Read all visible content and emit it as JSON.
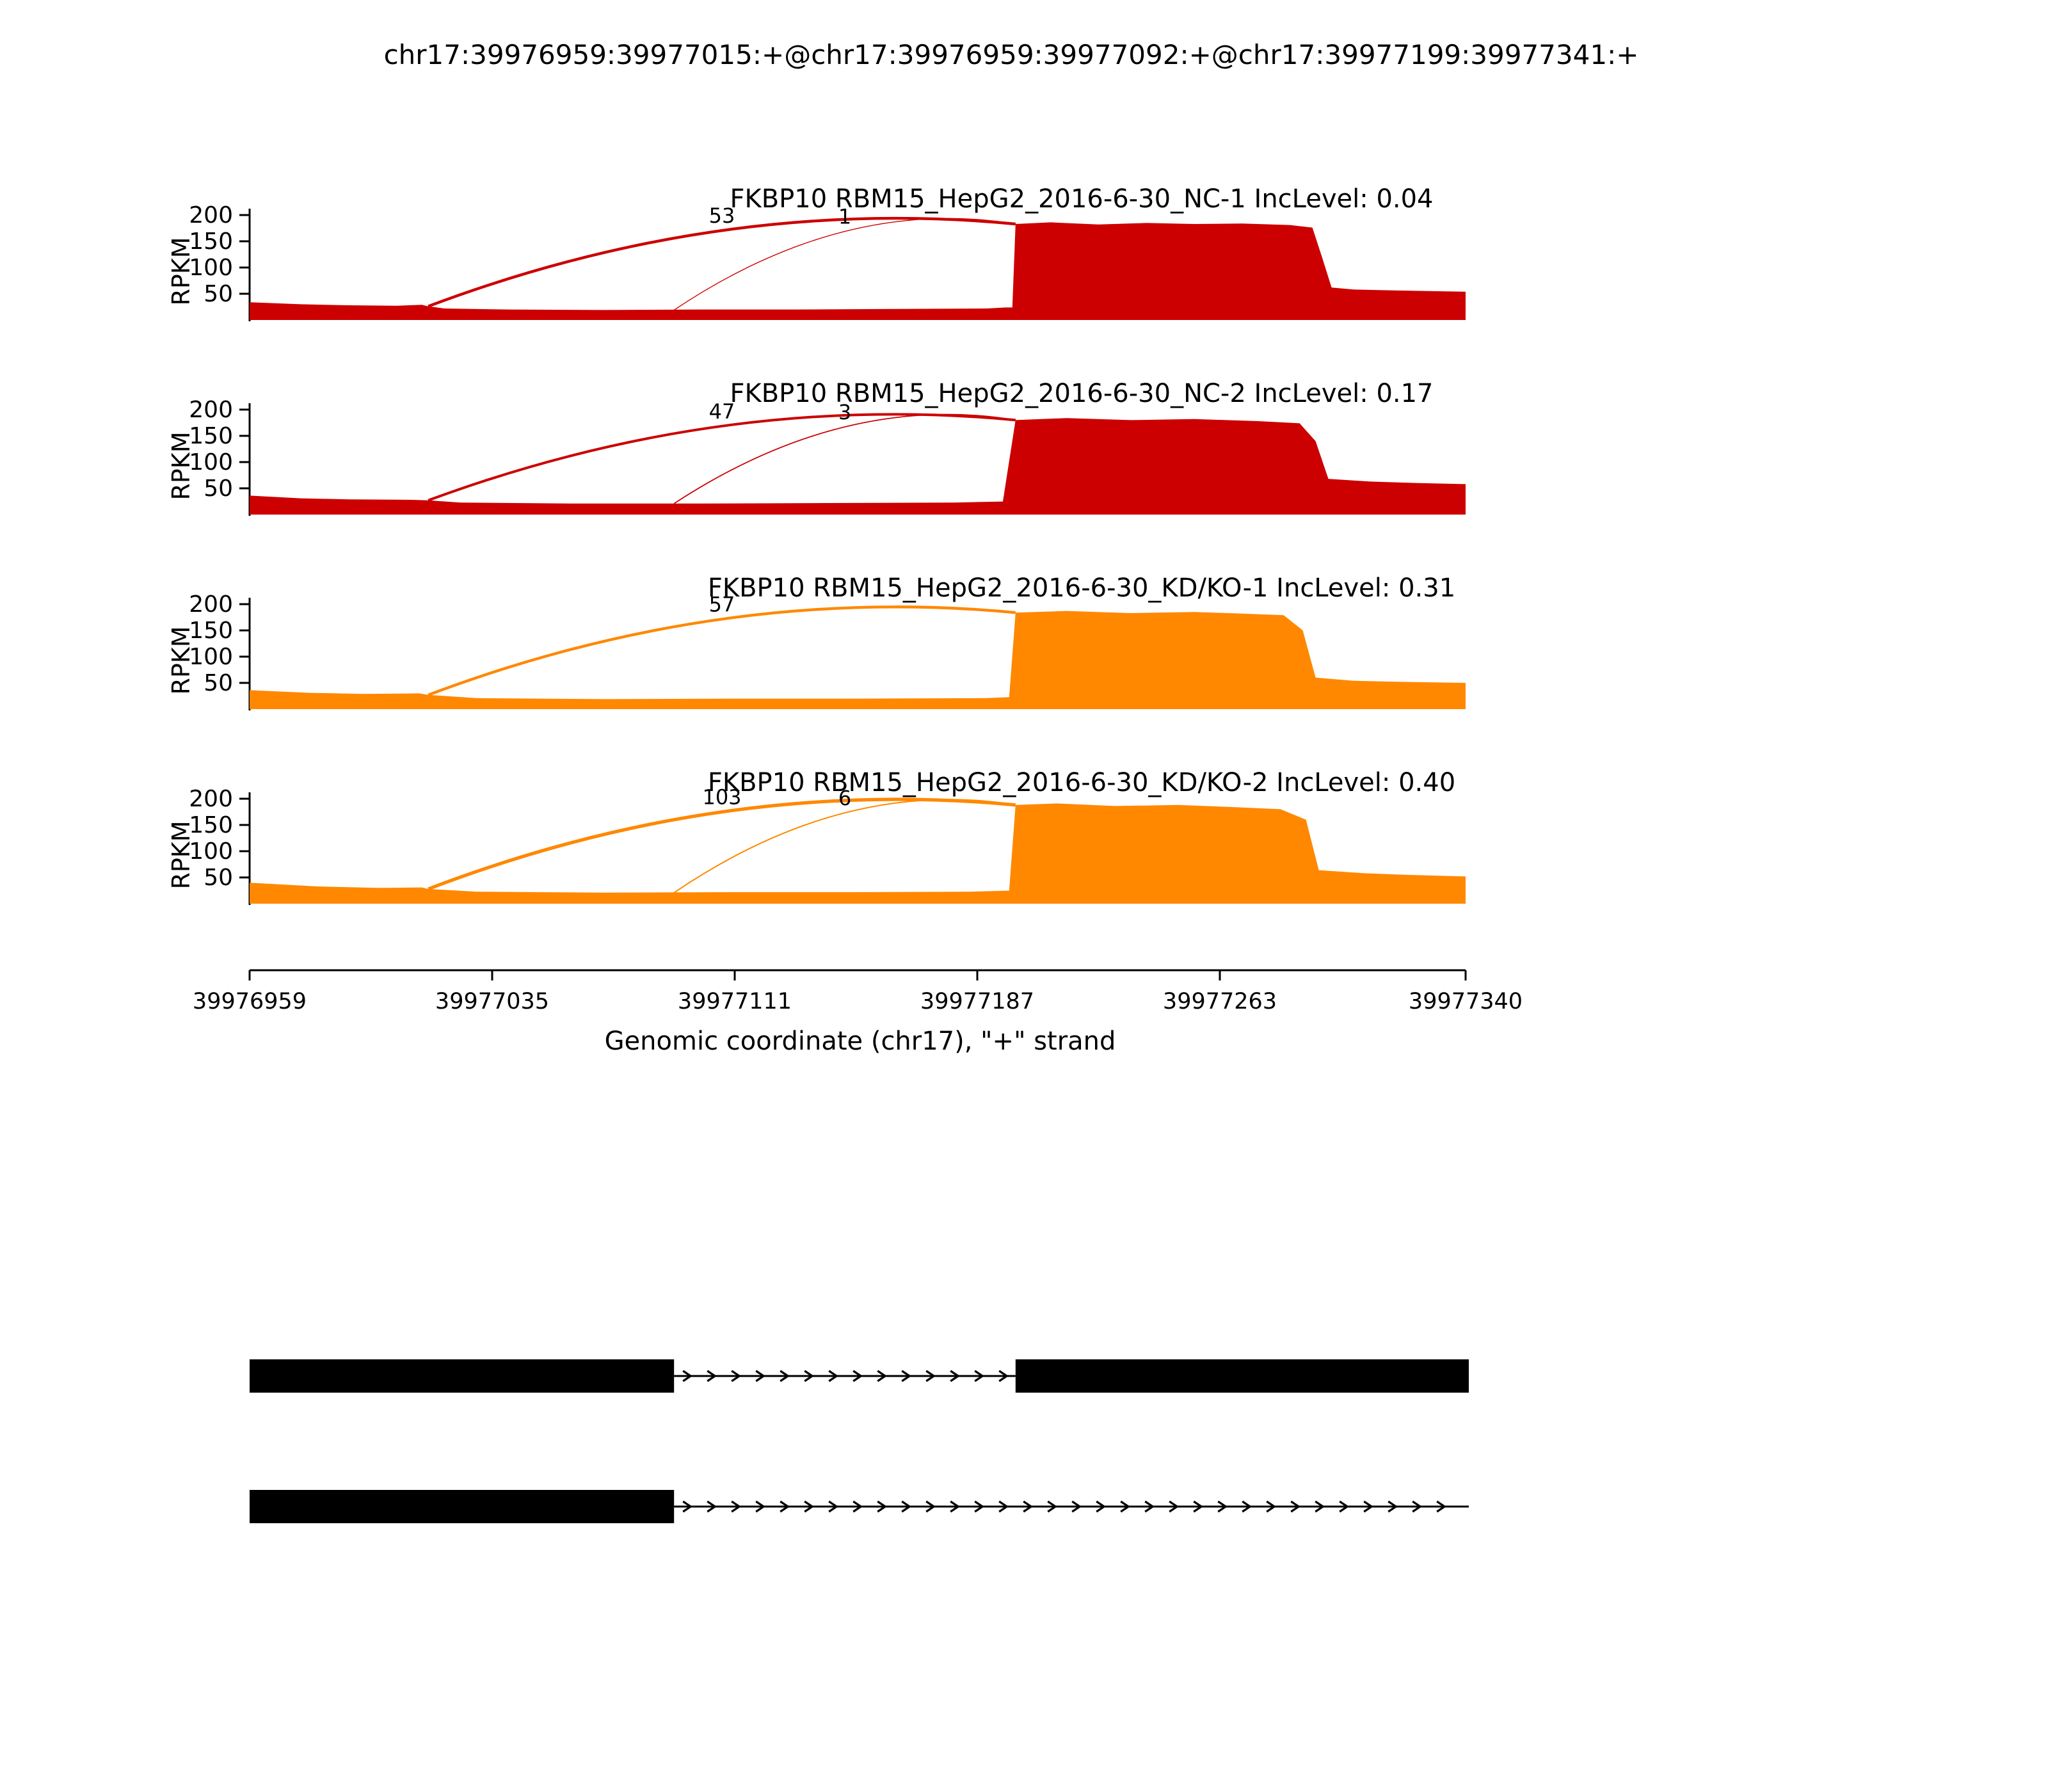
{
  "chart_data": {
    "type": "area",
    "title": "chr17:39976959:39977015:+@chr17:39976959:39977092:+@chr17:39977199:39977341:+",
    "xlabel": "Genomic coordinate (chr17), \"+\" strand",
    "ylabel": "RPKM",
    "x_start": 39976959,
    "x_end": 39977340,
    "x_ticks": [
      39976959,
      39977035,
      39977111,
      39977187,
      39977263,
      39977340
    ],
    "y_ticks": [
      50,
      100,
      150,
      200
    ],
    "ylim": [
      0,
      210
    ],
    "grid": false,
    "colors": {
      "nc": "#CC0000",
      "kdko": "#FF8800"
    },
    "tracks": [
      {
        "label": "FKBP10 RBM15_HepG2_2016-6-30_NC-1 IncLevel: 0.04",
        "inc_level": 0.04,
        "color": "#CC0000",
        "coverage": [
          [
            39976959,
            34
          ],
          [
            39976975,
            30
          ],
          [
            39976990,
            28
          ],
          [
            39977005,
            27
          ],
          [
            39977013,
            29
          ],
          [
            39977015,
            26
          ],
          [
            39977020,
            22
          ],
          [
            39977040,
            20
          ],
          [
            39977070,
            19
          ],
          [
            39977100,
            20
          ],
          [
            39977130,
            20
          ],
          [
            39977160,
            21
          ],
          [
            39977190,
            22
          ],
          [
            39977196,
            24
          ],
          [
            39977198,
            24
          ],
          [
            39977199,
            183
          ],
          [
            39977210,
            186
          ],
          [
            39977225,
            182
          ],
          [
            39977240,
            185
          ],
          [
            39977255,
            183
          ],
          [
            39977270,
            184
          ],
          [
            39977285,
            181
          ],
          [
            39977292,
            176
          ],
          [
            39977295,
            120
          ],
          [
            39977298,
            62
          ],
          [
            39977305,
            58
          ],
          [
            39977320,
            56
          ],
          [
            39977340,
            54
          ]
        ],
        "junctions": [
          {
            "from": 39977015,
            "to": 39977199,
            "count": 53,
            "weight": 2.2
          },
          {
            "from": 39977092,
            "to": 39977199,
            "count": 1,
            "weight": 0.7
          }
        ]
      },
      {
        "label": "FKBP10 RBM15_HepG2_2016-6-30_NC-2 IncLevel: 0.17",
        "inc_level": 0.17,
        "color": "#CC0000",
        "coverage": [
          [
            39976959,
            36
          ],
          [
            39976975,
            31
          ],
          [
            39976990,
            29
          ],
          [
            39977010,
            28
          ],
          [
            39977015,
            27
          ],
          [
            39977025,
            23
          ],
          [
            39977060,
            21
          ],
          [
            39977100,
            21
          ],
          [
            39977140,
            22
          ],
          [
            39977180,
            23
          ],
          [
            39977195,
            25
          ],
          [
            39977199,
            180
          ],
          [
            39977215,
            184
          ],
          [
            39977235,
            180
          ],
          [
            39977255,
            182
          ],
          [
            39977275,
            178
          ],
          [
            39977288,
            174
          ],
          [
            39977293,
            140
          ],
          [
            39977297,
            68
          ],
          [
            39977310,
            63
          ],
          [
            39977325,
            60
          ],
          [
            39977340,
            58
          ]
        ],
        "junctions": [
          {
            "from": 39977015,
            "to": 39977199,
            "count": 47,
            "weight": 2.0
          },
          {
            "from": 39977092,
            "to": 39977199,
            "count": 3,
            "weight": 0.9
          }
        ]
      },
      {
        "label": "FKBP10 RBM15_HepG2_2016-6-30_KD/KO-1 IncLevel: 0.31",
        "inc_level": 0.31,
        "color": "#FF8800",
        "coverage": [
          [
            39976959,
            36
          ],
          [
            39976978,
            31
          ],
          [
            39976995,
            29
          ],
          [
            39977012,
            30
          ],
          [
            39977015,
            27
          ],
          [
            39977030,
            21
          ],
          [
            39977070,
            19
          ],
          [
            39977110,
            20
          ],
          [
            39977150,
            20
          ],
          [
            39977190,
            21
          ],
          [
            39977197,
            23
          ],
          [
            39977199,
            184
          ],
          [
            39977215,
            187
          ],
          [
            39977235,
            183
          ],
          [
            39977255,
            185
          ],
          [
            39977270,
            182
          ],
          [
            39977283,
            179
          ],
          [
            39977289,
            150
          ],
          [
            39977293,
            60
          ],
          [
            39977305,
            54
          ],
          [
            39977320,
            52
          ],
          [
            39977340,
            50
          ]
        ],
        "junctions": [
          {
            "from": 39977015,
            "to": 39977199,
            "count": 57,
            "weight": 2.2
          }
        ]
      },
      {
        "label": "FKBP10 RBM15_HepG2_2016-6-30_KD/KO-2 IncLevel: 0.40",
        "inc_level": 0.4,
        "color": "#FF8800",
        "coverage": [
          [
            39976959,
            40
          ],
          [
            39976980,
            33
          ],
          [
            39977000,
            30
          ],
          [
            39977013,
            31
          ],
          [
            39977015,
            28
          ],
          [
            39977030,
            23
          ],
          [
            39977070,
            21
          ],
          [
            39977110,
            22
          ],
          [
            39977150,
            22
          ],
          [
            39977185,
            23
          ],
          [
            39977197,
            25
          ],
          [
            39977199,
            188
          ],
          [
            39977212,
            191
          ],
          [
            39977230,
            186
          ],
          [
            39977250,
            188
          ],
          [
            39977268,
            184
          ],
          [
            39977282,
            180
          ],
          [
            39977290,
            160
          ],
          [
            39977294,
            64
          ],
          [
            39977308,
            58
          ],
          [
            39977322,
            55
          ],
          [
            39977340,
            52
          ]
        ],
        "junctions": [
          {
            "from": 39977015,
            "to": 39977199,
            "count": 103,
            "weight": 2.6
          },
          {
            "from": 39977092,
            "to": 39977199,
            "count": 6,
            "weight": 1.0
          }
        ]
      }
    ],
    "transcripts": [
      {
        "exons": [
          [
            39976959,
            39977092
          ],
          [
            39977199,
            39977341
          ]
        ],
        "intron": [
          39977092,
          39977199
        ]
      },
      {
        "exons": [
          [
            39976959,
            39977092
          ]
        ],
        "intron": [
          39977092,
          39977341
        ]
      }
    ]
  }
}
